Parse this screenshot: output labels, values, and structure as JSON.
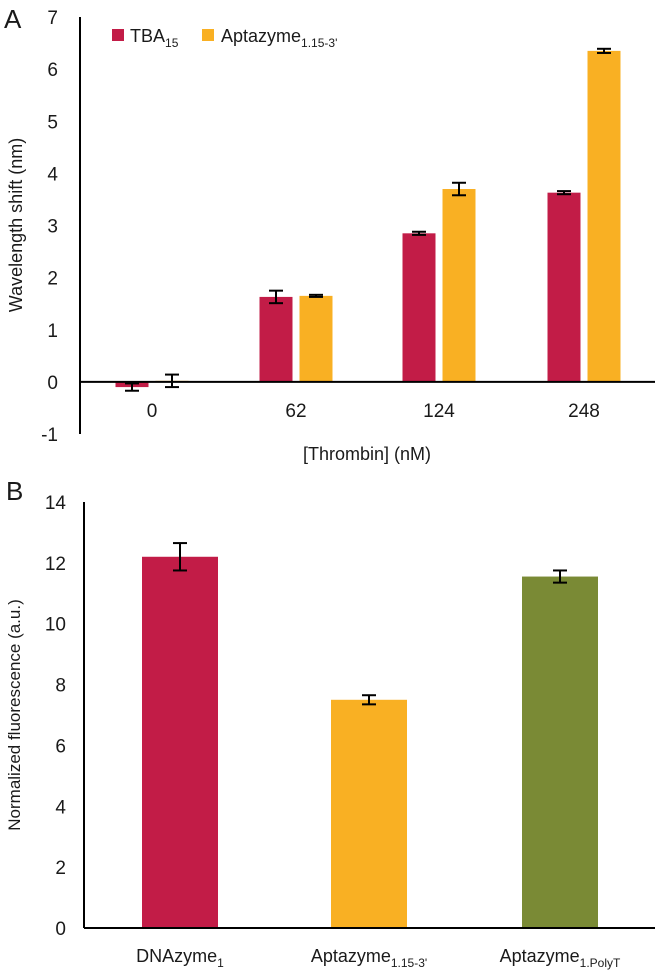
{
  "colors": {
    "red": "#c21c47",
    "yellow": "#f9b023",
    "green": "#7a8a35",
    "axis": "#000000"
  },
  "chart_data": [
    {
      "type": "bar",
      "panel_label": "A",
      "xlabel": "[Thrombin] (nM)",
      "ylabel": "Wavelength shift (nm)",
      "ylim": [
        -1,
        7
      ],
      "yticks": [
        "7",
        "6",
        "5",
        "4",
        "3",
        "2",
        "1",
        "0",
        "-1"
      ],
      "categories": [
        "0",
        "62",
        "124",
        "248"
      ],
      "legend_position": "top-left",
      "series": [
        {
          "name": "TBA",
          "name_sub": "15",
          "color": "#c21c47",
          "values": [
            -0.1,
            1.63,
            2.85,
            3.63
          ],
          "errors": [
            0.07,
            0.12,
            0.03,
            0.03
          ]
        },
        {
          "name": "Aptazyme",
          "name_sub": "1.15-3'",
          "color": "#f9b023",
          "values": [
            0.02,
            1.65,
            3.7,
            6.35
          ],
          "errors": [
            0.12,
            0.02,
            0.12,
            0.04
          ]
        }
      ],
      "grid": false
    },
    {
      "type": "bar",
      "panel_label": "B",
      "xlabel": "",
      "ylabel": "Normalized fluorescence (a.u.)",
      "ylim": [
        0,
        14
      ],
      "yticks": [
        "14",
        "12",
        "10",
        "8",
        "6",
        "4",
        "2",
        "0"
      ],
      "categories": [
        {
          "main": "DNAzyme",
          "sub": "1"
        },
        {
          "main": "Aptazyme",
          "sub": "1.15-3'"
        },
        {
          "main": "Aptazyme",
          "sub": "1.PolyT"
        }
      ],
      "values": [
        12.2,
        7.5,
        11.55
      ],
      "errors": [
        0.45,
        0.15,
        0.2
      ],
      "bar_colors": [
        "#c21c47",
        "#f9b023",
        "#7a8a35"
      ],
      "grid": false
    }
  ]
}
